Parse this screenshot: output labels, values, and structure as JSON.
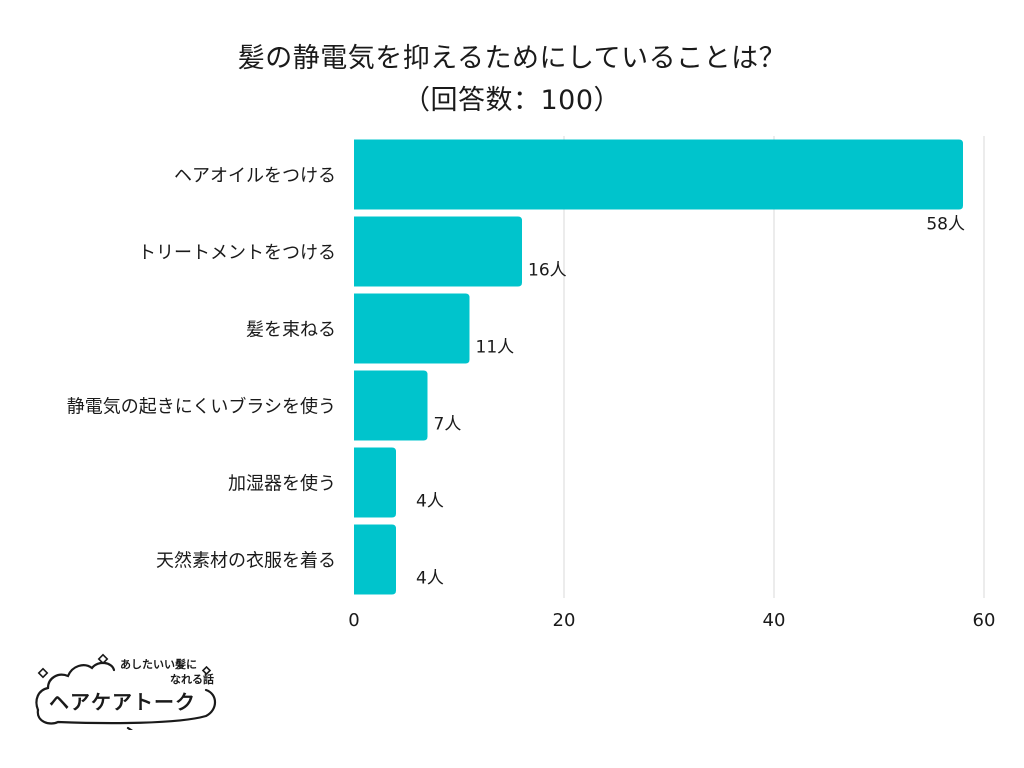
{
  "header": {
    "title_line1": "髪の静電気を抑えるためにしていることは？",
    "title_line2": "（回答数：100）"
  },
  "chart_data": {
    "type": "bar",
    "orientation": "horizontal",
    "title": "髪の静電気を抑えるためにしていることは？（回答数：100）",
    "categories": [
      "ヘアオイルをつける",
      "トリートメントをつける",
      "髪を束ねる",
      "静電気の起きにくいブラシを使う",
      "加湿器を使う",
      "天然素材の衣服を着る"
    ],
    "values": [
      58,
      16,
      11,
      7,
      4,
      4
    ],
    "value_labels": [
      "58人",
      "16人",
      "11人",
      "7人",
      "4人",
      "4人"
    ],
    "xlim": [
      0,
      60
    ],
    "xticks": [
      0,
      20,
      40,
      60
    ],
    "xtick_labels": [
      "0",
      "20",
      "40",
      "60"
    ],
    "xlabel": "",
    "ylabel": "",
    "grid": true,
    "bar_color": "#00C4CC",
    "grid_color": "#D9D9D9"
  },
  "logo": {
    "tagline_1": "あしたいい髪に",
    "tagline_2": "なれる話",
    "name": "ヘアケアトーク"
  }
}
